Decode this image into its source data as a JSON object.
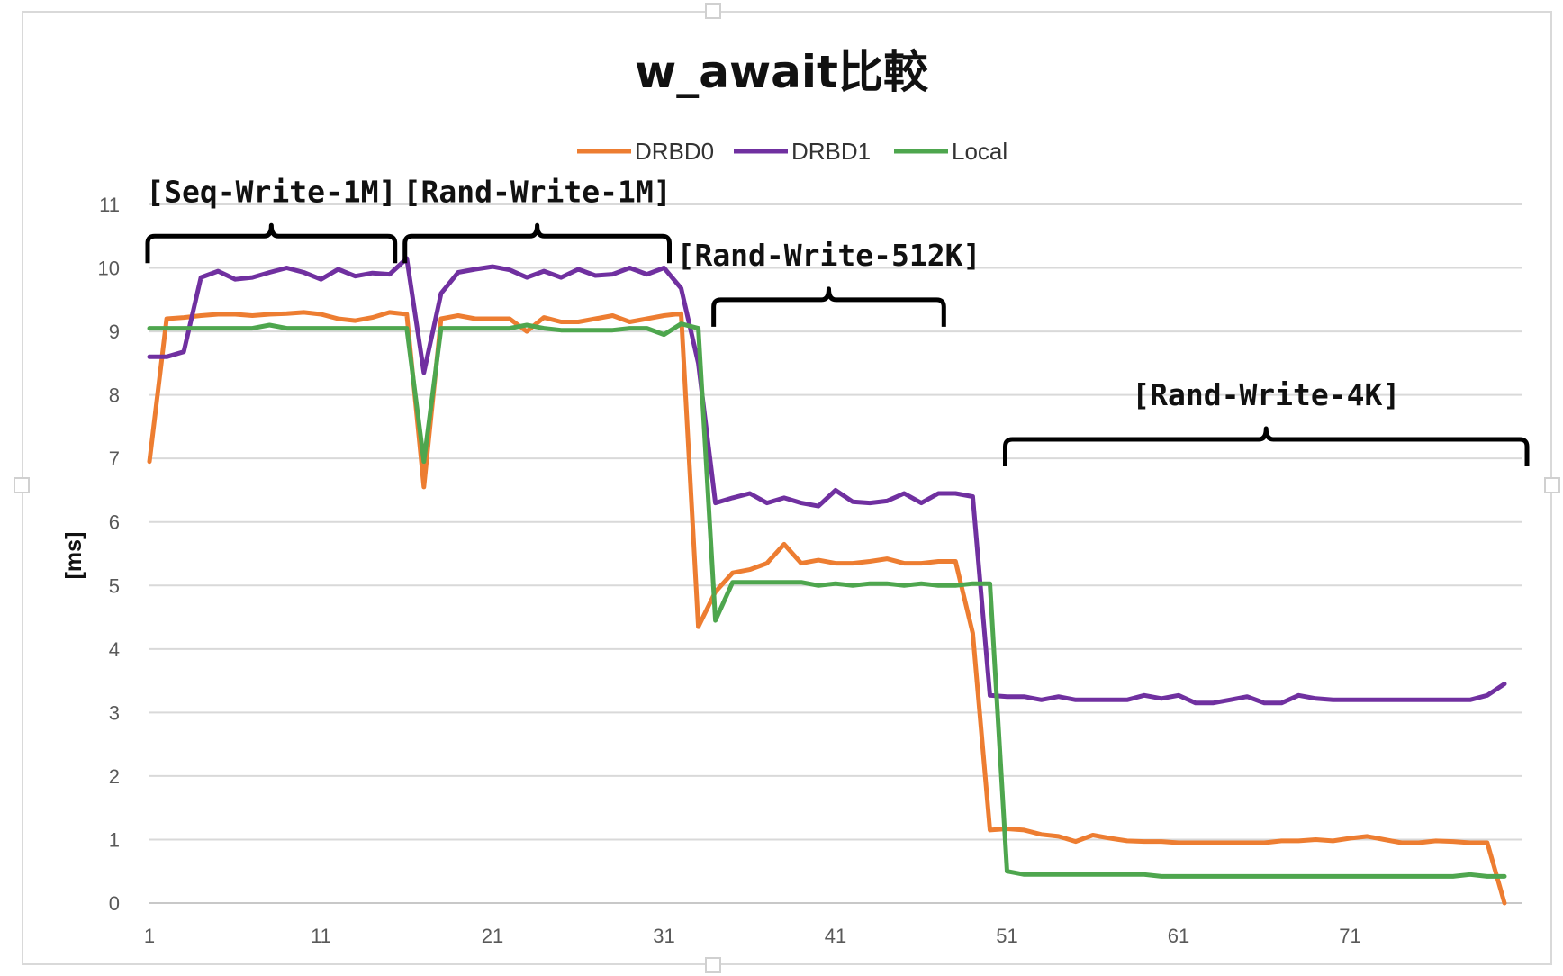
{
  "chart_data": {
    "type": "line",
    "title": "w_await比較",
    "xlabel": "",
    "ylabel": "[ms]",
    "ylim": [
      0,
      11
    ],
    "xlim": [
      1,
      80
    ],
    "y_ticks": [
      0,
      1,
      2,
      3,
      4,
      5,
      6,
      7,
      8,
      9,
      10,
      11
    ],
    "x_ticks": [
      1,
      11,
      21,
      31,
      41,
      51,
      61,
      71
    ],
    "grid": "horizontal",
    "legend_position": "top",
    "series": [
      {
        "name": "DRBD0",
        "color": "#ED7D31",
        "values": [
          6.95,
          9.2,
          9.22,
          9.25,
          9.27,
          9.27,
          9.25,
          9.27,
          9.28,
          9.3,
          9.27,
          9.2,
          9.17,
          9.22,
          9.3,
          9.27,
          6.55,
          9.2,
          9.25,
          9.2,
          9.2,
          9.2,
          9.0,
          9.22,
          9.15,
          9.15,
          9.2,
          9.25,
          9.15,
          9.2,
          9.25,
          9.28,
          4.35,
          4.9,
          5.2,
          5.25,
          5.35,
          5.65,
          5.35,
          5.4,
          5.35,
          5.35,
          5.38,
          5.42,
          5.35,
          5.35,
          5.38,
          5.38,
          4.25,
          1.15,
          1.17,
          1.15,
          1.08,
          1.05,
          0.97,
          1.07,
          1.02,
          0.98,
          0.97,
          0.97,
          0.95,
          0.95,
          0.95,
          0.95,
          0.95,
          0.95,
          0.98,
          0.98,
          1.0,
          0.98,
          1.02,
          1.05,
          1.0,
          0.95,
          0.95,
          0.98,
          0.97,
          0.95,
          0.95,
          0.0
        ]
      },
      {
        "name": "DRBD1",
        "color": "#7030A0",
        "values": [
          8.6,
          8.6,
          8.68,
          9.85,
          9.95,
          9.82,
          9.85,
          9.93,
          10.0,
          9.93,
          9.82,
          9.98,
          9.87,
          9.92,
          9.9,
          10.15,
          8.35,
          9.6,
          9.93,
          9.98,
          10.02,
          9.97,
          9.85,
          9.95,
          9.85,
          9.98,
          9.88,
          9.9,
          10.0,
          9.9,
          10.0,
          9.68,
          8.5,
          6.3,
          6.38,
          6.45,
          6.3,
          6.38,
          6.3,
          6.25,
          6.5,
          6.32,
          6.3,
          6.33,
          6.45,
          6.3,
          6.45,
          6.45,
          6.4,
          3.27,
          3.25,
          3.25,
          3.2,
          3.25,
          3.2,
          3.2,
          3.2,
          3.2,
          3.27,
          3.22,
          3.27,
          3.15,
          3.15,
          3.2,
          3.25,
          3.15,
          3.15,
          3.27,
          3.22,
          3.2,
          3.2,
          3.2,
          3.2,
          3.2,
          3.2,
          3.2,
          3.2,
          3.2,
          3.27,
          3.45
        ]
      },
      {
        "name": "Local",
        "color": "#4EA64E",
        "values": [
          9.05,
          9.05,
          9.05,
          9.05,
          9.05,
          9.05,
          9.05,
          9.1,
          9.05,
          9.05,
          9.05,
          9.05,
          9.05,
          9.05,
          9.05,
          9.05,
          6.95,
          9.05,
          9.05,
          9.05,
          9.05,
          9.05,
          9.1,
          9.05,
          9.02,
          9.02,
          9.02,
          9.02,
          9.05,
          9.05,
          8.95,
          9.12,
          9.05,
          4.45,
          5.05,
          5.05,
          5.05,
          5.05,
          5.05,
          5.0,
          5.03,
          5.0,
          5.03,
          5.03,
          5.0,
          5.03,
          5.0,
          5.0,
          5.03,
          5.03,
          0.5,
          0.45,
          0.45,
          0.45,
          0.45,
          0.45,
          0.45,
          0.45,
          0.45,
          0.42,
          0.42,
          0.42,
          0.42,
          0.42,
          0.42,
          0.42,
          0.42,
          0.42,
          0.42,
          0.42,
          0.42,
          0.42,
          0.42,
          0.42,
          0.42,
          0.42,
          0.42,
          0.45,
          0.42,
          0.42
        ]
      }
    ],
    "annotations": [
      {
        "label": "[Seq-Write-1M]",
        "from": 1,
        "to": 15,
        "level": 10.5
      },
      {
        "label": "[Rand-Write-1M]",
        "from": 16,
        "to": 31,
        "level": 10.5
      },
      {
        "label": "[Rand-Write-512K]",
        "from": 34,
        "to": 47,
        "level": 9.5
      },
      {
        "label": "[Rand-Write-4K]",
        "from": 51,
        "to": 81,
        "level": 7.3
      }
    ]
  }
}
